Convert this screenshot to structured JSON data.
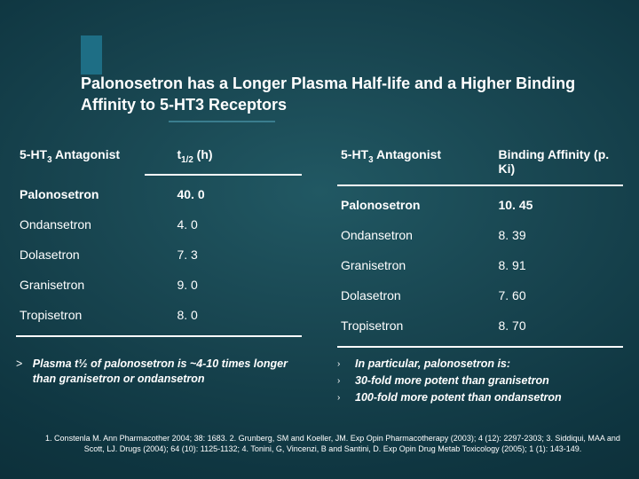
{
  "title": "Palonosetron has a Longer Plasma Half-life  and a Higher Binding Affinity to 5-HT3 Receptors",
  "left_table": {
    "head_col1": "5-HT₃ Antagonist",
    "head_col2": "t₁/₂ (h)",
    "rows": [
      {
        "name": "Palonosetron",
        "val": "40. 0",
        "bold": true
      },
      {
        "name": "Ondansetron",
        "val": "4. 0"
      },
      {
        "name": "Dolasetron",
        "val": "7. 3"
      },
      {
        "name": "Granisetron",
        "val": "9. 0"
      },
      {
        "name": "Tropisetron",
        "val": "8. 0"
      }
    ]
  },
  "right_table": {
    "head_col1": "5-HT₃ Antagonist",
    "head_col2": "Binding Affinity (p. Ki)",
    "rows": [
      {
        "name": "Palonosetron",
        "val": "10. 45",
        "bold": true
      },
      {
        "name": "Ondansetron",
        "val": "8. 39"
      },
      {
        "name": "Granisetron",
        "val": "8. 91"
      },
      {
        "name": "Dolasetron",
        "val": "7. 60"
      },
      {
        "name": "Tropisetron",
        "val": "8. 70"
      }
    ]
  },
  "note_left": "Plasma t½ of palonosetron is ~4-10 times longer than granisetron or ondansetron",
  "note_right_head": "In particular, palonosetron is:",
  "note_right_l1": "30-fold more potent than granisetron",
  "note_right_l2": "100-fold more potent than ondansetron",
  "refs": "1. Constenla M. Ann Pharmacother 2004; 38: 1683. 2. Grunberg, SM and Koeller, JM. Exp Opin Pharmacotherapy (2003); 4 (12): 2297-2303; 3. Siddiqui, MAA and Scott, LJ. Drugs (2004); 64 (10): 1125-1132; 4. Tonini, G, Vincenzi, B and Santini, D. Exp Opin Drug Metab Toxicology (2005); 1 (1): 143-149.",
  "colors": {
    "bg_center": "#215863",
    "bg_edge": "#0a2932",
    "accent": "#1e6e85",
    "text": "#ffffff"
  }
}
